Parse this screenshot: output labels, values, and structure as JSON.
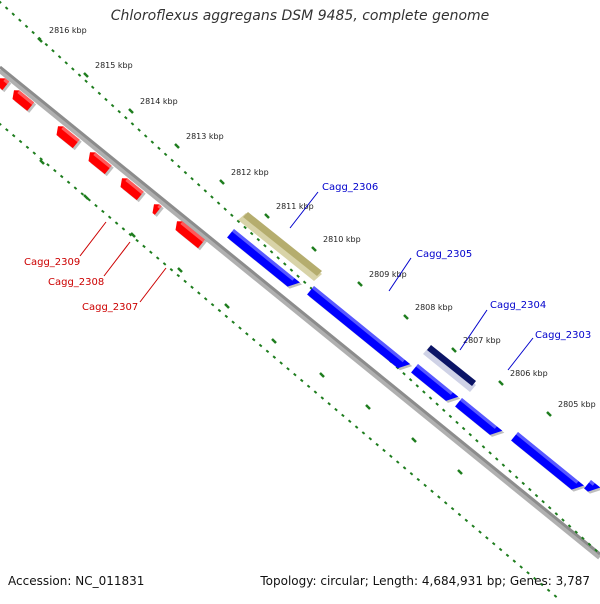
{
  "title": "Chloroflexus aggregans DSM 9485, complete genome",
  "footer": {
    "accession": "Accession: NC_011831",
    "summary": "Topology: circular; Length: 4,684,931 bp; Genes: 3,787"
  },
  "colors": {
    "backbone": "#8c8c8c",
    "dotted_track": "#1e7d1e",
    "forward_gene": "#0000ff",
    "reverse_gene": "#ff0000",
    "highlight_gene": "#b5ad6e",
    "selected_gene": "#0b1466",
    "forward_label": "#0000cc",
    "reverse_label": "#cc0000"
  },
  "scale": {
    "unit": "kbp",
    "ticks": [
      "2816 kbp",
      "2815 kbp",
      "2814 kbp",
      "2813 kbp",
      "2812 kbp",
      "2811 kbp",
      "2810 kbp",
      "2809 kbp",
      "2808 kbp",
      "2807 kbp",
      "2806 kbp",
      "2805 kbp"
    ]
  },
  "genes": {
    "forward_labels": [
      "Cagg_2306",
      "Cagg_2305",
      "Cagg_2304",
      "Cagg_2303"
    ],
    "reverse_labels": [
      "Cagg_2309",
      "Cagg_2308",
      "Cagg_2307"
    ]
  }
}
